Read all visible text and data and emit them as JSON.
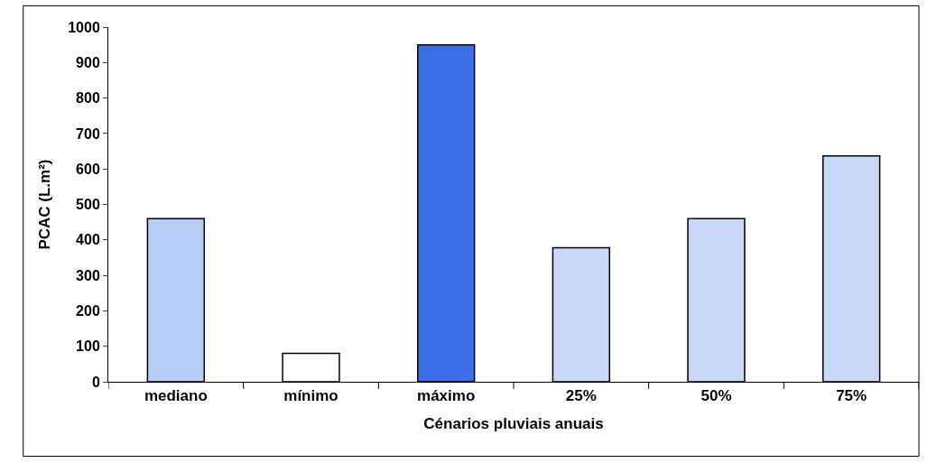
{
  "chart_data": {
    "type": "bar",
    "xlabel": "Cénarios pluviais anuais",
    "ylabel": "PCAC (L.m²)",
    "categories": [
      "mediano",
      "mínimo",
      "máximo",
      "25%",
      "50%",
      "75%"
    ],
    "values": [
      460,
      80,
      950,
      378,
      460,
      637
    ],
    "colors": [
      "#b8cdf5",
      "#ffffff",
      "#3d6fe8",
      "#c9d8f7",
      "#c9d8f7",
      "#c9d8f7"
    ],
    "ylim": [
      0,
      1000
    ],
    "yticks": [
      0,
      100,
      200,
      300,
      400,
      500,
      600,
      700,
      800,
      900,
      1000
    ]
  }
}
